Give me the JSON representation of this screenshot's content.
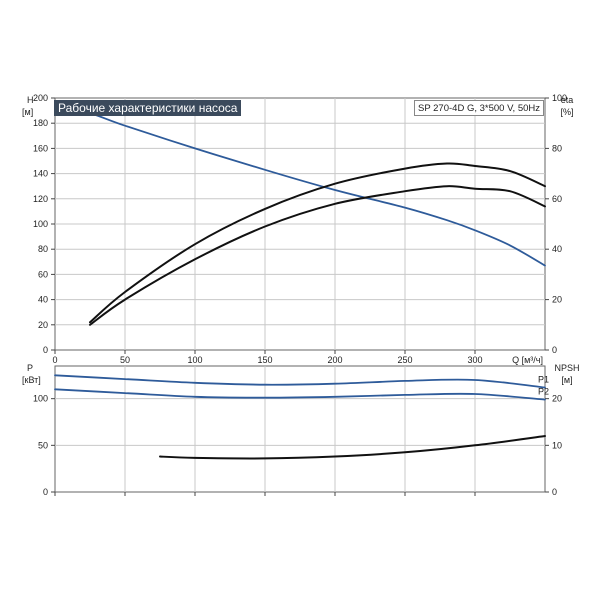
{
  "chart_data": [
    {
      "type": "line",
      "title": "Рабочие характеристики насоса",
      "model_label": "SP 270-4D G, 3*500 V, 50Hz",
      "x_label": "Q [м³/ч]",
      "x_ticks": [
        "0",
        "50",
        "100",
        "150",
        "200",
        "250",
        "300"
      ],
      "xlim": [
        0,
        350
      ],
      "left_axis": {
        "label": "H",
        "unit": "[м]",
        "ticks": [
          "0",
          "20",
          "40",
          "60",
          "80",
          "100",
          "120",
          "140",
          "160",
          "180",
          "200"
        ],
        "ylim": [
          0,
          200
        ]
      },
      "right_axis": {
        "label": "eta",
        "unit": "[%]",
        "ticks": [
          "0",
          "20",
          "40",
          "60",
          "80",
          "100"
        ],
        "ylim": [
          0,
          100
        ]
      },
      "grid": true,
      "series": [
        {
          "axis": "left",
          "color": "#2e5b9a",
          "x": [
            0,
            25,
            50,
            100,
            150,
            200,
            250,
            280,
            300,
            325,
            350
          ],
          "y": [
            195,
            188,
            178,
            160,
            143,
            127,
            113,
            103,
            95,
            83,
            67
          ]
        },
        {
          "axis": "right",
          "color": "#111111",
          "x": [
            25,
            50,
            100,
            150,
            200,
            250,
            280,
            300,
            325,
            350
          ],
          "y": [
            11,
            23,
            42,
            56,
            66,
            72,
            74,
            73,
            71,
            65
          ]
        },
        {
          "axis": "right",
          "color": "#111111",
          "x": [
            25,
            50,
            100,
            150,
            200,
            250,
            280,
            300,
            325,
            350
          ],
          "y": [
            10,
            20,
            36,
            49,
            58,
            63,
            65,
            64,
            63,
            57
          ]
        }
      ]
    },
    {
      "type": "line",
      "x_ticks": [
        "0",
        "50",
        "100",
        "150",
        "200",
        "250",
        "300"
      ],
      "xlim": [
        0,
        350
      ],
      "left_axis": {
        "label": "P",
        "unit": "[кВт]",
        "ticks": [
          "0",
          "50",
          "100"
        ],
        "ylim": [
          0,
          135
        ]
      },
      "right_axis": {
        "label": "NPSH",
        "unit": "[м]",
        "ticks": [
          "0",
          "10",
          "20"
        ],
        "ylim": [
          0,
          27
        ]
      },
      "grid": true,
      "series": [
        {
          "name": "P1",
          "axis": "left",
          "color": "#2e5b9a",
          "x": [
            0,
            50,
            100,
            150,
            200,
            250,
            300,
            350
          ],
          "y": [
            125,
            121,
            117,
            115,
            116,
            119,
            120,
            112
          ]
        },
        {
          "name": "P2",
          "axis": "left",
          "color": "#2e5b9a",
          "x": [
            0,
            50,
            100,
            150,
            200,
            250,
            300,
            350
          ],
          "y": [
            110,
            106,
            102,
            101,
            102,
            104,
            105,
            99
          ]
        },
        {
          "axis": "right",
          "color": "#111111",
          "x": [
            75,
            100,
            150,
            200,
            250,
            300,
            350
          ],
          "y": [
            7.6,
            7.3,
            7.2,
            7.6,
            8.5,
            10.0,
            12.0
          ]
        }
      ]
    }
  ]
}
